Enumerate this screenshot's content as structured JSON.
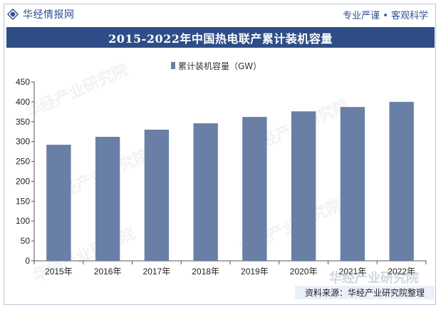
{
  "header": {
    "brand": "华经情报网",
    "slogan": "专业严谨 • 客观科学"
  },
  "source": "资料来源：华经产业研究院整理",
  "watermark": "华经产业研究院",
  "colors": {
    "bar": "#6a7fa6",
    "title_bg": "#2f4e88",
    "brand": "#2e4f8f"
  },
  "chart_data": {
    "type": "bar",
    "title": "2015-2022年中国热电联产累计装机容量",
    "categories": [
      "2015年",
      "2016年",
      "2017年",
      "2018年",
      "2019年",
      "2020年",
      "2021年",
      "2022年"
    ],
    "series": [
      {
        "name": "累计装机容量（GW）",
        "values": [
          292,
          312,
          330,
          346,
          362,
          376,
          387,
          400
        ]
      }
    ],
    "ylim": [
      0,
      450
    ],
    "yticks": [
      0,
      50,
      100,
      150,
      200,
      250,
      300,
      350,
      400,
      450
    ],
    "grid": false,
    "legend": "top-center"
  }
}
